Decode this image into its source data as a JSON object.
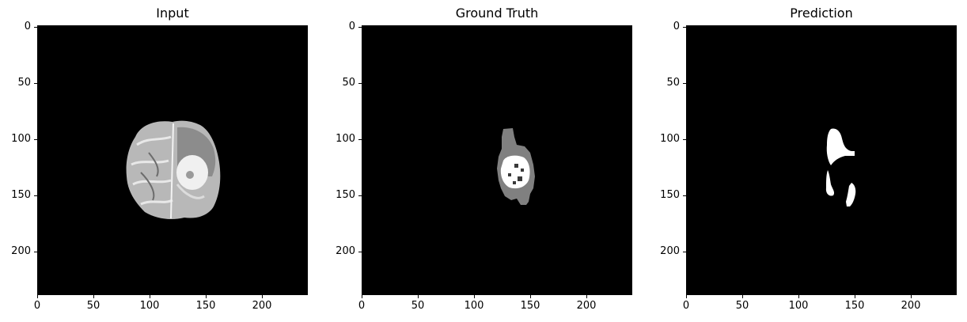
{
  "panels": [
    {
      "title": "Input",
      "xticks": [
        "0",
        "50",
        "100",
        "150",
        "200"
      ],
      "yticks": [
        "0",
        "50",
        "100",
        "150",
        "200"
      ]
    },
    {
      "title": "Ground Truth",
      "xticks": [
        "0",
        "50",
        "100",
        "150",
        "200"
      ],
      "yticks": [
        "0",
        "50",
        "100",
        "150",
        "200"
      ]
    },
    {
      "title": "Prediction",
      "xticks": [
        "0",
        "50",
        "100",
        "150",
        "200"
      ],
      "yticks": [
        "0",
        "50",
        "100",
        "150",
        "200"
      ]
    }
  ],
  "colors": {
    "background": "#000000",
    "tissue_light": "#d0d0d0",
    "tissue_mid": "#9a9a9a",
    "tumor_bright": "#ffffff",
    "edema_gray": "#808080",
    "core_dark": "#3a3a3a"
  }
}
